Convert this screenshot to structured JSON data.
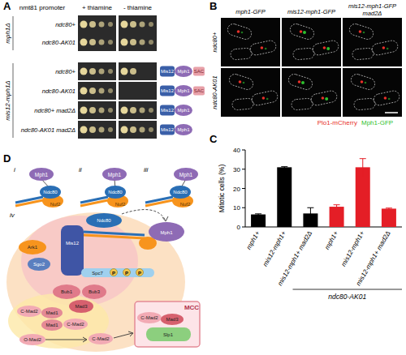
{
  "chart_data": {
    "type": "bar",
    "title": "C",
    "y_label": "Mitotic cells (%)",
    "categories": [
      "mph1+",
      "mis12-mph1+",
      "mis12-mph1+ mad2Δ",
      "mph1+",
      "mis12-mph1+",
      "mis12-mph1+ mad2Δ"
    ],
    "values": [
      6.5,
      31,
      7,
      10.5,
      31,
      9.5
    ],
    "errors": [
      0.3,
      0.3,
      3,
      1,
      4.5,
      0.3
    ],
    "colors": [
      "#000000",
      "#000000",
      "#000000",
      "#e41e26",
      "#e41e26",
      "#e41e26"
    ],
    "ylim": [
      0,
      40
    ],
    "yticks": [
      0,
      10,
      20,
      30,
      40
    ],
    "annotation": "ndc80-AK01"
  },
  "panel_a": {
    "label": "A",
    "promoter": "nmt81 promoter",
    "conditions": [
      "+ thiamine",
      "- thiamine"
    ],
    "groups": [
      {
        "label": "mph1Δ",
        "rows": [
          {
            "label": "ndc80+",
            "growth": [
              4,
              4
            ],
            "construct": []
          },
          {
            "label": "ndc80-AK01",
            "growth": [
              4,
              4
            ],
            "construct": []
          }
        ]
      },
      {
        "label": "mis12-mph1Δ",
        "rows": [
          {
            "label": "ndc80+",
            "growth": [
              4,
              2
            ],
            "construct": [
              "Mis12",
              "Mph1",
              "SAC"
            ]
          },
          {
            "label": "ndc80-AK01",
            "growth": [
              4,
              0
            ],
            "construct": [
              "Mis12",
              "Mph1",
              "SAC"
            ]
          },
          {
            "label": "ndc80+ mad2Δ",
            "growth": [
              4,
              4
            ],
            "construct": [
              "Mis12",
              "Mph1"
            ]
          },
          {
            "label": "ndc80-AK01 mad2Δ",
            "growth": [
              4,
              4
            ],
            "construct": [
              "Mis12",
              "Mph1"
            ]
          }
        ]
      }
    ]
  },
  "panel_b": {
    "label": "B",
    "columns": [
      "mph1-GFP",
      "mis12-mph1-GFP",
      "mis12-mph1-GFP mad2Δ"
    ],
    "rows": [
      "ndc80+",
      "ndc80-AK01"
    ],
    "legend": [
      {
        "name": "Plo1-mCherry",
        "color": "#e8302a"
      },
      {
        "name": "Mph1-GFP",
        "color": "#2fbf2f"
      }
    ]
  },
  "panel_d": {
    "label": "D",
    "sketches": [
      {
        "numeral": "i",
        "labels": [
          "Mph1",
          "Ndc80",
          "Nuf2"
        ]
      },
      {
        "numeral": "ii",
        "labels": [
          "Mph1",
          "Ndc80",
          "Nuf2"
        ]
      },
      {
        "numeral": "iii",
        "labels": [
          "Mph1",
          "Ndc80",
          "Nuf2"
        ]
      }
    ],
    "main": {
      "numeral": "iv",
      "phospho": "P",
      "components": [
        {
          "label": "Ark1",
          "color": "#f7941d"
        },
        {
          "label": "Sgo2",
          "color": "#5b7fbf"
        },
        {
          "label": "Mis12",
          "color": "#3f55a5"
        },
        {
          "label": "Ndc80",
          "color": "#2a6fb5"
        },
        {
          "label": "Mph1",
          "color": "#8e6bb5"
        },
        {
          "label": "Spc7",
          "color": "#9fd0ee"
        },
        {
          "label": "Bub1",
          "color": "#e07a8a"
        },
        {
          "label": "Bub3",
          "color": "#e07a8a"
        },
        {
          "label": "Mad3",
          "color": "#d6606e"
        },
        {
          "label": "Mad1",
          "color": "#e48a96"
        },
        {
          "label": "Mad1",
          "color": "#e48a96"
        },
        {
          "label": "C-Mad2",
          "color": "#f2aab4"
        },
        {
          "label": "C-Mad2",
          "color": "#f2aab4"
        },
        {
          "label": "O-Mad2",
          "color": "#f2aab4"
        },
        {
          "label": "C-Mad2",
          "color": "#f2aab4"
        },
        {
          "label": "MCC",
          "color": "#e48a96"
        },
        {
          "label": "C-Mad2",
          "color": "#f2aab4"
        },
        {
          "label": "Mad3",
          "color": "#d6606e"
        },
        {
          "label": "Slp1",
          "color": "#8ccf7e"
        }
      ]
    }
  }
}
